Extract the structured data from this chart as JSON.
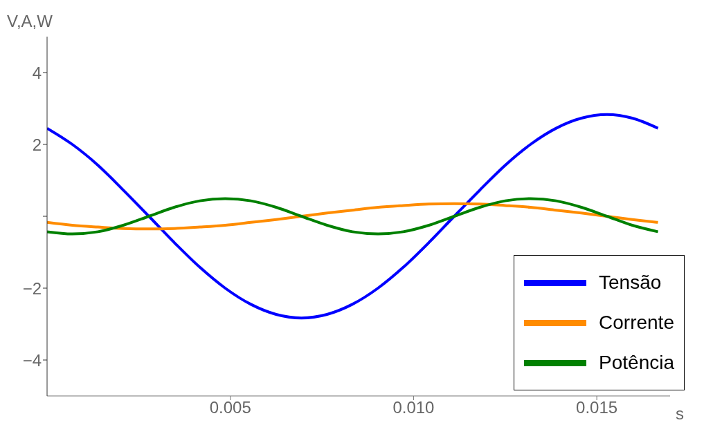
{
  "chart_data": {
    "type": "line",
    "xlabel": "s",
    "ylabel": "V,A,W",
    "x": [
      0,
      0.00069,
      0.00139,
      0.00208,
      0.00278,
      0.00347,
      0.00417,
      0.00486,
      0.00556,
      0.00625,
      0.00694,
      0.00764,
      0.00833,
      0.00903,
      0.00972,
      0.01042,
      0.01111,
      0.01181,
      0.0125,
      0.01319,
      0.01389,
      0.01458,
      0.01528,
      0.01597,
      0.01667
    ],
    "series": [
      {
        "name": "Tensão",
        "color": "#0000ff",
        "values": [
          2.45,
          2.0,
          1.42,
          0.73,
          0,
          -0.73,
          -1.42,
          -2.0,
          -2.45,
          -2.73,
          -2.83,
          -2.73,
          -2.45,
          -2.0,
          -1.42,
          -0.73,
          0,
          0.73,
          1.42,
          2.0,
          2.45,
          2.73,
          2.83,
          2.73,
          2.45
        ]
      },
      {
        "name": "Corrente",
        "color": "#ff8c00",
        "values": [
          -0.17,
          -0.25,
          -0.3,
          -0.34,
          -0.35,
          -0.34,
          -0.3,
          -0.25,
          -0.17,
          -0.09,
          0,
          0.09,
          0.17,
          0.25,
          0.3,
          0.34,
          0.35,
          0.34,
          0.3,
          0.25,
          0.17,
          0.09,
          0,
          -0.09,
          -0.17
        ]
      },
      {
        "name": "Potência",
        "color": "#008000",
        "values": [
          -0.43,
          -0.49,
          -0.43,
          -0.25,
          0,
          0.25,
          0.43,
          0.49,
          0.43,
          0.25,
          0,
          -0.25,
          -0.43,
          -0.49,
          -0.43,
          -0.25,
          0,
          0.25,
          0.43,
          0.49,
          0.43,
          0.25,
          0,
          -0.25,
          -0.43
        ]
      }
    ],
    "xlim": [
      0,
      0.017
    ],
    "xticks": [
      {
        "value": 0.005,
        "label": "0.005"
      },
      {
        "value": 0.01,
        "label": "0.010"
      },
      {
        "value": 0.015,
        "label": "0.015"
      }
    ],
    "ylim": [
      -5,
      5
    ],
    "yticks": [
      {
        "value": -4,
        "label": "−4"
      },
      {
        "value": -2,
        "label": "−2"
      },
      {
        "value": 0,
        "label": null
      },
      2,
      4
    ],
    "legend": "bottom right",
    "marker": "none",
    "line_style": "solid"
  }
}
